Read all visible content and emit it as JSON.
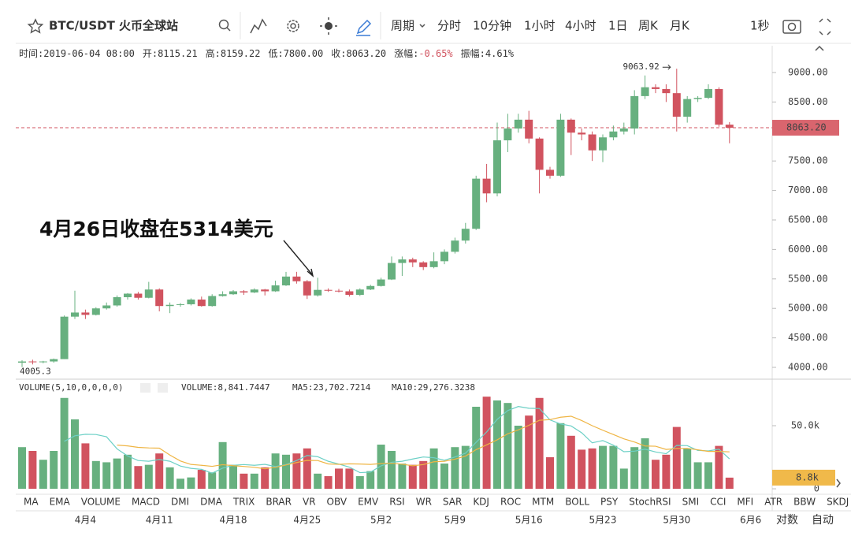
{
  "toolbar": {
    "symbol": "BTC/USDT 火币全球站",
    "period": "周期",
    "intervals": [
      "分时",
      "10分钟",
      "1小时",
      "4小时",
      "1日",
      "周K",
      "月K"
    ],
    "active_interval": "1日",
    "refresh": "1秒"
  },
  "info": [
    {
      "label": "时间:",
      "value": "2019-06-04 08:00"
    },
    {
      "label": "开:",
      "value": "8115.21"
    },
    {
      "label": "高:",
      "value": "8159.22"
    },
    {
      "label": "低:",
      "value": "7800.00"
    },
    {
      "label": "收:",
      "value": "8063.20"
    },
    {
      "label": "涨幅:",
      "value": "-0.65%"
    },
    {
      "label": "振幅:",
      "value": "4.61%"
    }
  ],
  "chart_data": {
    "type": "candlestick",
    "annotation": "4月26日收盘在5314美元",
    "categories": [
      null,
      null,
      null,
      null,
      null,
      null,
      "4月4",
      null,
      null,
      null,
      null,
      null,
      null,
      "4月11",
      null,
      null,
      null,
      null,
      null,
      null,
      "4月18",
      null,
      null,
      null,
      null,
      null,
      null,
      "4月25",
      null,
      null,
      null,
      null,
      null,
      null,
      "5月2",
      null,
      null,
      null,
      null,
      null,
      null,
      "5月9",
      null,
      null,
      null,
      null,
      null,
      null,
      "5月16",
      null,
      null,
      null,
      null,
      null,
      null,
      "5月23",
      null,
      null,
      null,
      null,
      null,
      null,
      "5月30",
      null,
      null,
      null,
      null,
      null,
      null,
      "6月6"
    ],
    "open": [
      4080,
      4100,
      4095,
      4100,
      4140,
      4860,
      4930,
      4890,
      5000,
      5050,
      5190,
      5250,
      5180,
      5320,
      5040,
      5060,
      5070,
      5150,
      5040,
      5210,
      5240,
      5290,
      5270,
      5320,
      5290,
      5390,
      5540,
      5460,
      5220,
      5314,
      5300,
      5290,
      5230,
      5320,
      5380,
      5490,
      5770,
      5830,
      5780,
      5700,
      5800,
      5960,
      6150,
      6350,
      7200,
      6950,
      7850,
      8050,
      8200,
      7880,
      7350,
      7250,
      8200,
      7980,
      7950,
      7680,
      7900,
      8000,
      8050,
      8600,
      8750,
      8720,
      8650,
      8250,
      8550,
      8570,
      8720,
      8115.21,
      null,
      null
    ],
    "high": [
      4120,
      4130,
      4110,
      4150,
      4880,
      5300,
      4980,
      5020,
      5100,
      5220,
      5260,
      5280,
      5450,
      5340,
      5100,
      5090,
      5170,
      5200,
      5240,
      5290,
      5310,
      5310,
      5340,
      5330,
      5470,
      5620,
      5620,
      5480,
      5520,
      5340,
      5330,
      5320,
      5340,
      5400,
      5520,
      5880,
      5880,
      5860,
      5800,
      5950,
      6000,
      6200,
      6450,
      7250,
      7450,
      8150,
      8300,
      8300,
      8350,
      7900,
      7400,
      8300,
      8220,
      8050,
      8000,
      7950,
      8100,
      8150,
      8700,
      8950,
      8800,
      8800,
      9063.92,
      8600,
      8600,
      8800,
      8750,
      8159.22,
      null,
      null
    ],
    "low": [
      4005.3,
      4050,
      4070,
      4080,
      4140,
      4820,
      4820,
      4880,
      4980,
      5030,
      5150,
      5150,
      5170,
      4950,
      4920,
      5030,
      5050,
      5030,
      5030,
      5200,
      5230,
      5230,
      5260,
      5220,
      5280,
      5380,
      5420,
      5160,
      5200,
      5280,
      5270,
      5200,
      5210,
      5310,
      5370,
      5480,
      5550,
      5700,
      5650,
      5680,
      5750,
      5930,
      6100,
      6330,
      6800,
      6900,
      7650,
      7980,
      7800,
      6950,
      7200,
      7230,
      7600,
      7850,
      7500,
      7480,
      7850,
      7950,
      7950,
      8550,
      8650,
      8500,
      8000,
      8150,
      8500,
      8550,
      8080,
      7800,
      null,
      null
    ],
    "close": [
      4100,
      4095,
      4100,
      4140,
      4860,
      4930,
      4890,
      5000,
      5050,
      5190,
      5250,
      5180,
      5320,
      5040,
      5060,
      5070,
      5150,
      5040,
      5210,
      5240,
      5290,
      5270,
      5320,
      5290,
      5390,
      5540,
      5460,
      5220,
      5314,
      5300,
      5290,
      5230,
      5320,
      5380,
      5490,
      5770,
      5830,
      5780,
      5700,
      5800,
      5960,
      6150,
      6350,
      7200,
      6950,
      7850,
      8050,
      8200,
      7880,
      7350,
      7250,
      8200,
      7980,
      7950,
      7680,
      7900,
      8000,
      8050,
      8600,
      8750,
      8720,
      8650,
      8250,
      8550,
      8570,
      8720,
      8115.21,
      8063.2,
      null,
      null
    ],
    "up_color": "#67b07f",
    "down_color": "#d1535f",
    "ylim": [
      3813,
      9160
    ],
    "yticks": [
      {
        "value": 4000,
        "label": "4000.00"
      },
      {
        "value": 4500,
        "label": "4500.00"
      },
      {
        "value": 5000,
        "label": "5000.00"
      },
      {
        "value": 5500,
        "label": "5500.00"
      },
      {
        "value": 6000,
        "label": "6000.00"
      },
      {
        "value": 6500,
        "label": "6500.00"
      },
      {
        "value": 7000,
        "label": "7000.00"
      },
      {
        "value": 7500,
        "label": "7500.00"
      },
      {
        "value": 8000,
        "label": "8000.00"
      },
      {
        "value": 8500,
        "label": "8500.00"
      },
      {
        "value": 9000,
        "label": "9000.00"
      }
    ],
    "current_price": {
      "value": 8063.2,
      "label": "8063.20"
    },
    "volume": {
      "title": "VOLUME(5,10,0,0,0,0)",
      "values": [
        33000,
        30000,
        23000,
        30000,
        72000,
        55000,
        36000,
        22000,
        21000,
        24000,
        27000,
        18000,
        19000,
        28000,
        17000,
        8000,
        9000,
        15000,
        13000,
        37000,
        19000,
        12000,
        12000,
        17000,
        28000,
        27000,
        28000,
        32000,
        12000,
        10000,
        16000,
        16000,
        10000,
        14000,
        35000,
        30000,
        20000,
        19000,
        22000,
        32000,
        20000,
        33000,
        34000,
        65000,
        73000,
        70000,
        68000,
        50000,
        58000,
        72000,
        25000,
        52000,
        42000,
        31000,
        32000,
        34000,
        34000,
        16000,
        33000,
        40000,
        23000,
        27000,
        49000,
        32000,
        21000,
        21000,
        34000,
        8841.7447,
        null,
        null
      ],
      "value_label": "VOLUME:8,841.7447",
      "axis_label": "8.8k",
      "series": [
        {
          "name": "MA5:23,702.7214",
          "color": "#6cd0c6",
          "values": [
            null,
            null,
            null,
            null,
            37600,
            42000,
            43200,
            43000,
            41200,
            31600,
            26000,
            22400,
            21800,
            23200,
            21800,
            18000,
            16200,
            15400,
            12400,
            16400,
            18600,
            19200,
            18600,
            19400,
            17600,
            19200,
            22400,
            26400,
            25400,
            21800,
            19600,
            17200,
            12800,
            13200,
            18200,
            21000,
            21800,
            23600,
            25200,
            24600,
            22600,
            25200,
            28200,
            36800,
            45000,
            55000,
            62000,
            65200,
            63800,
            63600,
            54600,
            51400,
            49800,
            44400,
            36400,
            38200,
            34600,
            29400,
            29800,
            31400,
            29200,
            27800,
            34400,
            34200,
            30400,
            30000,
            31400,
            23702.7214,
            null,
            null
          ]
        },
        {
          "name": "MA10:29,276.3238",
          "color": "#efb544",
          "values": [
            null,
            null,
            null,
            null,
            null,
            null,
            null,
            null,
            null,
            34600,
            34000,
            32800,
            32400,
            32200,
            26700,
            22000,
            19300,
            18600,
            17800,
            19100,
            18300,
            17700,
            17000,
            15900,
            17000,
            18900,
            20800,
            22500,
            22400,
            19700,
            19400,
            19800,
            19600,
            19300,
            20000,
            20300,
            19500,
            18200,
            19200,
            21400,
            21800,
            23500,
            25900,
            31000,
            34800,
            38800,
            43600,
            46700,
            50300,
            54300,
            54800,
            56700,
            57500,
            54100,
            50000,
            46400,
            43000,
            39600,
            37100,
            33900,
            33700,
            31200,
            31900,
            32000,
            30900,
            29600,
            29600,
            29276.3238,
            null,
            null
          ]
        }
      ],
      "ylim": [
        -3100,
        85600
      ],
      "yticks": [
        0,
        {
          "value": 50000,
          "label": "50.0k"
        }
      ]
    }
  },
  "indicators": {
    "items": [
      "MA",
      "EMA",
      "VOLUME",
      "MACD",
      "DMI",
      "DMA",
      "TRIX",
      "BRAR",
      "VR",
      "OBV",
      "EMV",
      "RSI",
      "WR",
      "SAR",
      "KDJ",
      "ROC",
      "MTM",
      "BOLL",
      "PSY",
      "StochRSI",
      "SMI",
      "CCI",
      "MFI",
      "ATR",
      "BBW",
      "SKDJ"
    ],
    "active": "VOLUME"
  },
  "scale_modes": [
    "对数",
    "自动"
  ]
}
